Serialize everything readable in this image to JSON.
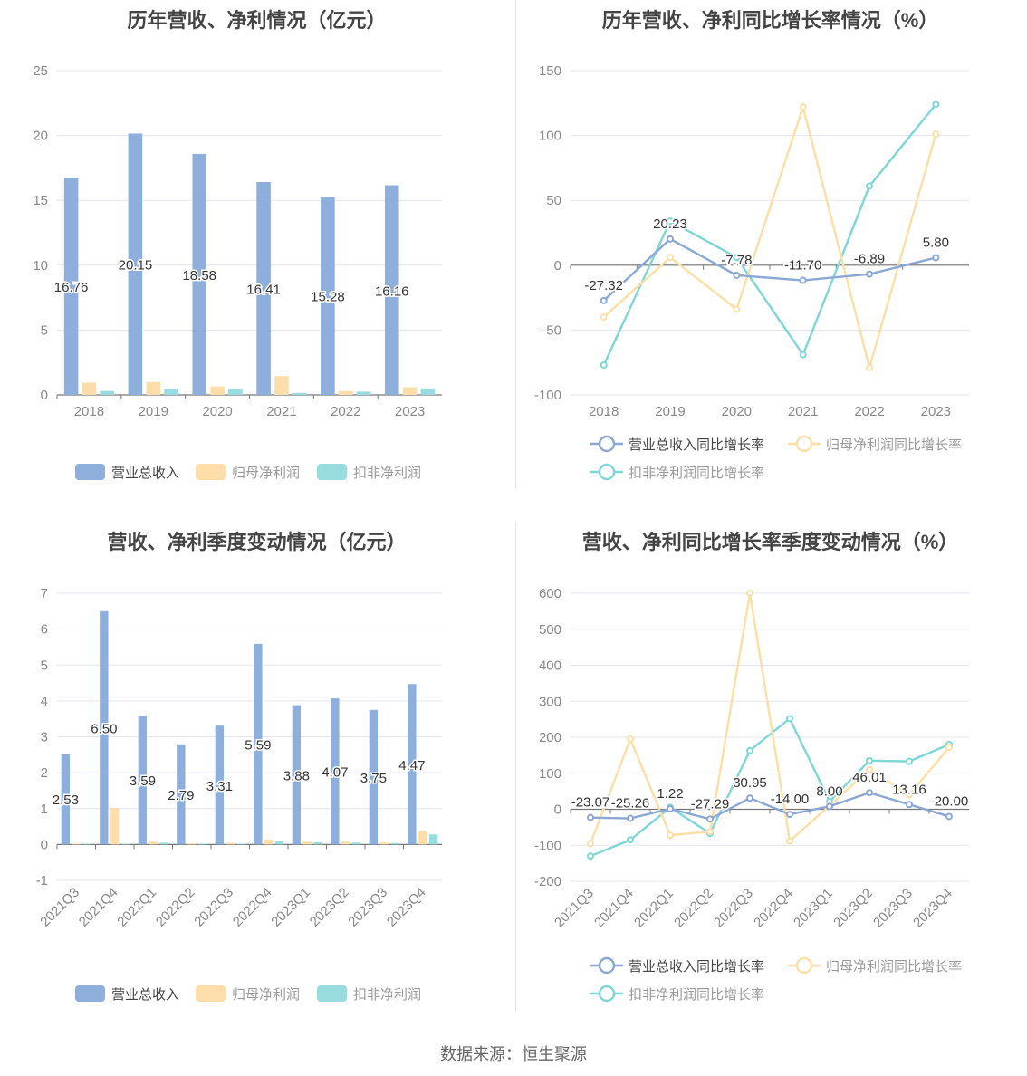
{
  "source": "数据来源：恒生聚源",
  "colors": {
    "revenue": "#8eaedb",
    "netprofit": "#fdddaa",
    "deducted": "#99dcdf"
  },
  "chart_data": [
    {
      "type": "bar",
      "title": "历年营收、净利情况（亿元）",
      "categories": [
        "2018",
        "2019",
        "2020",
        "2021",
        "2022",
        "2023"
      ],
      "ylim": [
        0,
        25
      ],
      "yticks": [
        0,
        5,
        10,
        15,
        20,
        25
      ],
      "series": [
        {
          "name": "营业总收入",
          "values": [
            16.76,
            20.15,
            18.58,
            16.41,
            15.28,
            16.16
          ],
          "labels": [
            "16.76",
            "20.15",
            "18.58",
            "16.41",
            "15.28",
            "16.16"
          ]
        },
        {
          "name": "归母净利润",
          "values": [
            0.95,
            1.0,
            0.65,
            1.45,
            0.3,
            0.6
          ]
        },
        {
          "name": "扣非净利润",
          "values": [
            0.3,
            0.45,
            0.45,
            0.15,
            0.25,
            0.5
          ]
        }
      ],
      "legend": "bottom"
    },
    {
      "type": "line",
      "title": "历年营收、净利同比增长率情况（%）",
      "categories": [
        "2018",
        "2019",
        "2020",
        "2021",
        "2022",
        "2023"
      ],
      "ylim": [
        -100,
        150
      ],
      "yticks": [
        -100,
        -50,
        0,
        50,
        100,
        150
      ],
      "series": [
        {
          "name": "营业总收入同比增长率",
          "values": [
            -27.32,
            20.23,
            -7.78,
            -11.7,
            -6.89,
            5.8
          ],
          "labels": [
            "-27.32",
            "20.23",
            "-7.78",
            "-11.70",
            "-6.89",
            "5.80"
          ]
        },
        {
          "name": "归母净利润同比增长率",
          "values": [
            -40,
            6,
            -34,
            122,
            -79,
            101
          ]
        },
        {
          "name": "扣非净利润同比增长率",
          "values": [
            -77,
            34,
            6,
            -69,
            61,
            124
          ]
        }
      ],
      "legend": "bottom"
    },
    {
      "type": "bar",
      "title": "营收、净利季度变动情况（亿元）",
      "categories": [
        "2021Q3",
        "2021Q4",
        "2022Q1",
        "2022Q2",
        "2022Q3",
        "2022Q4",
        "2023Q1",
        "2023Q2",
        "2023Q3",
        "2023Q4"
      ],
      "ylim": [
        -1,
        7
      ],
      "yticks": [
        -1,
        0,
        1,
        2,
        3,
        4,
        5,
        6,
        7
      ],
      "series": [
        {
          "name": "营业总收入",
          "values": [
            2.53,
            6.5,
            3.59,
            2.79,
            3.31,
            5.59,
            3.88,
            4.07,
            3.75,
            4.47
          ],
          "labels": [
            "2.53",
            "6.50",
            "3.59",
            "2.79",
            "3.31",
            "5.59",
            "3.88",
            "4.07",
            "3.75",
            "4.47"
          ]
        },
        {
          "name": "归母净利润",
          "values": [
            0.02,
            1.02,
            0.08,
            0.03,
            0.04,
            0.14,
            0.08,
            0.08,
            0.05,
            0.37
          ]
        },
        {
          "name": "扣非净利润",
          "values": [
            0.02,
            0.02,
            0.05,
            0.02,
            0.02,
            0.1,
            0.06,
            0.05,
            0.04,
            0.28
          ]
        }
      ],
      "legend": "bottom"
    },
    {
      "type": "line",
      "title": "营收、净利同比增长率季度变动情况（%）",
      "categories": [
        "2021Q3",
        "2021Q4",
        "2022Q1",
        "2022Q2",
        "2022Q3",
        "2022Q4",
        "2023Q1",
        "2023Q2",
        "2023Q3",
        "2023Q4"
      ],
      "ylim": [
        -200,
        600
      ],
      "yticks": [
        -200,
        -100,
        0,
        100,
        200,
        300,
        400,
        500,
        600
      ],
      "series": [
        {
          "name": "营业总收入同比增长率",
          "values": [
            -23.07,
            -25.26,
            1.22,
            -27.29,
            30.95,
            -14.0,
            8.0,
            46.01,
            13.16,
            -20.0
          ],
          "labels": [
            "-23.07",
            "-25.26",
            "1.22",
            "-27.29",
            "30.95",
            "-14.00",
            "8.00",
            "46.01",
            "13.16",
            "-20.00"
          ]
        },
        {
          "name": "归母净利润同比增长率",
          "values": [
            -95,
            195,
            -72,
            -62,
            600,
            -88,
            10,
            110,
            40,
            172
          ]
        },
        {
          "name": "扣非净利润同比增长率",
          "values": [
            -130,
            -85,
            5,
            -67,
            163,
            252,
            22,
            135,
            133,
            180
          ]
        }
      ],
      "legend": "bottom"
    }
  ]
}
